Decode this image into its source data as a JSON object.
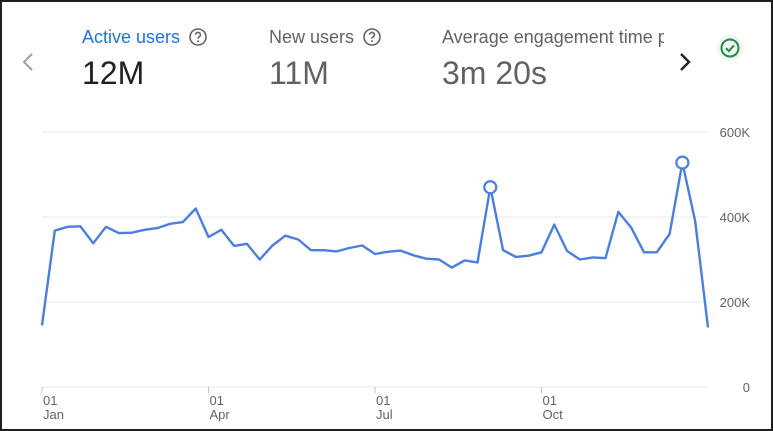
{
  "metrics": [
    {
      "label": "Active users",
      "value": "12M",
      "active": true,
      "help_icon": "help-circle-icon"
    },
    {
      "label": "New users",
      "value": "11M",
      "active": false,
      "help_icon": "help-circle-icon"
    },
    {
      "label": "Average engagement time per active user",
      "value": "3m 20s",
      "active": false
    }
  ],
  "navigation": {
    "prev_icon": "chevron-left-icon",
    "next_icon": "chevron-right-icon"
  },
  "status_icon": "check-circle-icon",
  "colors": {
    "accent": "#1a73e8",
    "line": "#4a7fe0",
    "status": "#1e8e3e",
    "grid": "#e8eaed"
  },
  "chart_data": {
    "type": "line",
    "ylim": [
      0,
      600000
    ],
    "yticks": [
      {
        "value": 0,
        "label": "0"
      },
      {
        "value": 200000,
        "label": "200K"
      },
      {
        "value": 400000,
        "label": "400K"
      },
      {
        "value": 600000,
        "label": "600K"
      }
    ],
    "x_tick_labels": [
      {
        "day": "01",
        "month": "Jan"
      },
      {
        "day": "01",
        "month": "Apr"
      },
      {
        "day": "01",
        "month": "Jul"
      },
      {
        "day": "01",
        "month": "Oct"
      }
    ],
    "x_tick_index": [
      0,
      13,
      26,
      39
    ],
    "series": [
      {
        "values": [
          145000,
          368000,
          377000,
          378000,
          338000,
          377000,
          362000,
          363000,
          370000,
          374000,
          384000,
          388000,
          420000,
          353000,
          370000,
          332000,
          337000,
          300000,
          333000,
          356000,
          347000,
          322000,
          322000,
          319000,
          327000,
          333000,
          313000,
          318000,
          321000,
          310000,
          302000,
          300000,
          281000,
          298000,
          293000,
          470000,
          322000,
          306000,
          309000,
          317000,
          382000,
          320000,
          300000,
          305000,
          303000,
          412000,
          375000,
          317000,
          317000,
          360000,
          528000,
          390000,
          140000
        ],
        "highlight_index": [
          35,
          50
        ]
      }
    ]
  }
}
